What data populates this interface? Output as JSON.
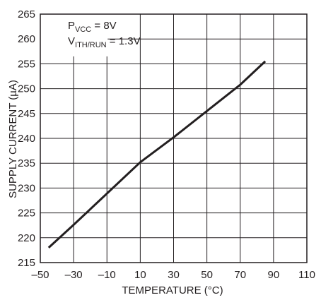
{
  "chart_data": {
    "type": "line",
    "title": "",
    "xlabel": "TEMPERATURE (°C)",
    "ylabel": "SUPPLY CURRENT (µA)",
    "xlim": [
      -50,
      110
    ],
    "ylim": [
      215,
      265
    ],
    "x_ticks": [
      -50,
      -30,
      -10,
      10,
      30,
      50,
      70,
      90,
      110
    ],
    "x_tick_labels": [
      "–50",
      "–30",
      "–10",
      "10",
      "30",
      "50",
      "70",
      "90",
      "110"
    ],
    "y_ticks": [
      215,
      220,
      225,
      230,
      235,
      240,
      245,
      250,
      255,
      260,
      265
    ],
    "y_tick_labels": [
      "215",
      "220",
      "225",
      "230",
      "235",
      "240",
      "245",
      "250",
      "255",
      "260",
      "265"
    ],
    "grid": true,
    "series": [
      {
        "x": [
          -45,
          -30,
          -10,
          10,
          30,
          50,
          70,
          85
        ],
        "y": [
          218,
          222.6,
          228.9,
          235.2,
          240.2,
          245.5,
          250.8,
          255.5
        ]
      }
    ],
    "annotations": {
      "line1_main": "P",
      "line1_sub": "VCC",
      "line1_rest": " = 8V",
      "line2_main": "V",
      "line2_sub": "ITH/RUN",
      "line2_rest": " = 1.3V"
    },
    "colors": {
      "line": "#231f20",
      "grid": "#231f20",
      "text": "#231f20"
    }
  }
}
